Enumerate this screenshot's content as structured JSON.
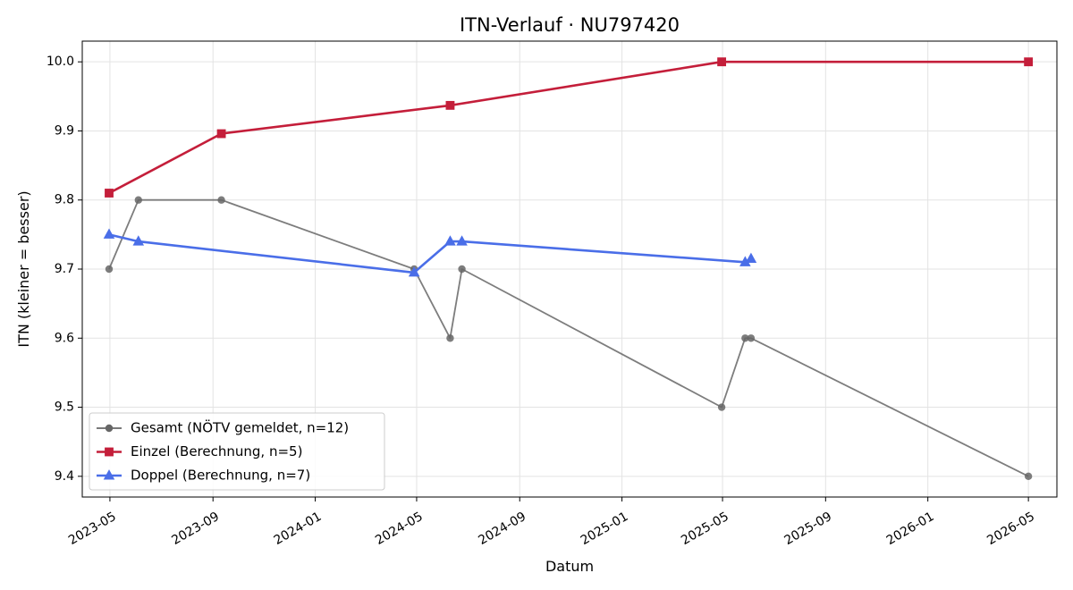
{
  "chart_data": {
    "type": "line",
    "title": "ITN-Verlauf · NU797420",
    "xlabel": "Datum",
    "ylabel": "ITN  (kleiner = besser)",
    "x_axis_type": "date",
    "xlim": [
      "2023-03-29",
      "2026-06-04"
    ],
    "ylim": [
      9.37,
      10.03
    ],
    "x_ticks": [
      "2023-05",
      "2023-09",
      "2024-01",
      "2024-05",
      "2024-09",
      "2025-01",
      "2025-05",
      "2025-09",
      "2026-01",
      "2026-05"
    ],
    "y_ticks": [
      9.4,
      9.5,
      9.6,
      9.7,
      9.8,
      9.9,
      10.0
    ],
    "grid": true,
    "legend_position": "bottom-left",
    "series": [
      {
        "name": "Gesamt (NÖTV gemeldet, n=12)",
        "color": "#666666",
        "marker": "circle",
        "points": [
          {
            "date": "2023-04-30",
            "value": 9.7
          },
          {
            "date": "2023-06-04",
            "value": 9.8
          },
          {
            "date": "2023-09-11",
            "value": 9.8
          },
          {
            "date": "2024-04-28",
            "value": 9.7
          },
          {
            "date": "2024-06-10",
            "value": 9.6
          },
          {
            "date": "2024-06-24",
            "value": 9.7
          },
          {
            "date": "2025-04-30",
            "value": 9.5
          },
          {
            "date": "2025-05-28",
            "value": 9.6
          },
          {
            "date": "2025-06-04",
            "value": 9.6
          },
          {
            "date": "2026-05-01",
            "value": 9.4
          }
        ]
      },
      {
        "name": "Einzel (Berechnung, n=5)",
        "color": "#c41e3a",
        "marker": "square",
        "points": [
          {
            "date": "2023-04-30",
            "value": 9.81
          },
          {
            "date": "2023-09-11",
            "value": 9.896
          },
          {
            "date": "2024-06-10",
            "value": 9.937
          },
          {
            "date": "2025-04-30",
            "value": 10.0
          },
          {
            "date": "2026-05-01",
            "value": 10.0
          }
        ]
      },
      {
        "name": "Doppel (Berechnung, n=7)",
        "color": "#4a6ee8",
        "marker": "triangle",
        "points": [
          {
            "date": "2023-04-30",
            "value": 9.75
          },
          {
            "date": "2023-06-04",
            "value": 9.74
          },
          {
            "date": "2024-04-28",
            "value": 9.695
          },
          {
            "date": "2024-06-10",
            "value": 9.74
          },
          {
            "date": "2024-06-24",
            "value": 9.74
          },
          {
            "date": "2025-05-28",
            "value": 9.71
          },
          {
            "date": "2025-06-04",
            "value": 9.715
          }
        ]
      }
    ]
  }
}
